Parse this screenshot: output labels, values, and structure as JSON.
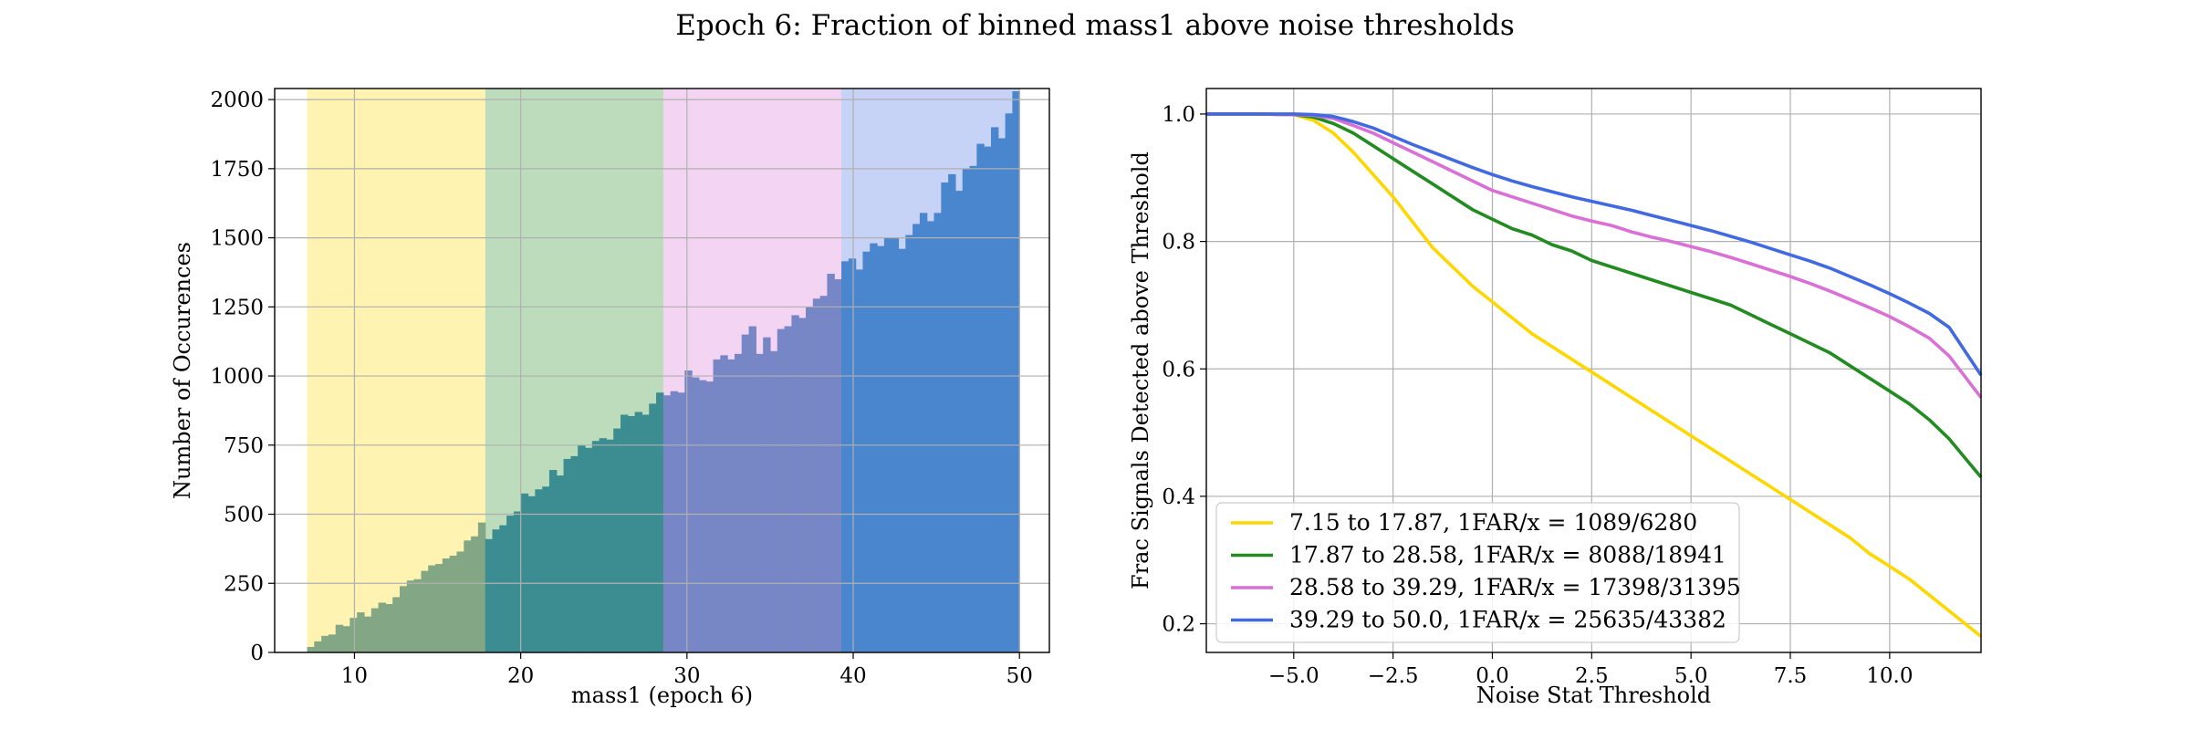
{
  "suptitle": "Epoch 6: Fraction of binned mass1 above noise thresholds",
  "chart_data": [
    {
      "type": "bar",
      "subtype": "histogram",
      "xlabel": "mass1 (epoch 6)",
      "ylabel": "Number of Occurences",
      "xlim": [
        5.2,
        51.8
      ],
      "ylim": [
        0,
        2040
      ],
      "xticks": [
        10,
        20,
        30,
        40,
        50
      ],
      "yticks": [
        0,
        250,
        500,
        750,
        1000,
        1250,
        1500,
        1750,
        2000
      ],
      "grid": true,
      "bin_start": 7.15,
      "bin_end": 50.0,
      "bin_count": 100,
      "counts": [
        20,
        40,
        60,
        65,
        100,
        95,
        125,
        145,
        130,
        160,
        180,
        175,
        200,
        240,
        260,
        265,
        295,
        315,
        320,
        340,
        350,
        365,
        405,
        420,
        470,
        410,
        445,
        460,
        495,
        510,
        575,
        565,
        590,
        600,
        660,
        640,
        700,
        710,
        750,
        740,
        765,
        775,
        770,
        810,
        860,
        855,
        870,
        860,
        900,
        940,
        930,
        945,
        940,
        1020,
        995,
        985,
        980,
        1060,
        1075,
        1060,
        1080,
        1150,
        1180,
        1080,
        1140,
        1090,
        1170,
        1180,
        1220,
        1210,
        1250,
        1280,
        1290,
        1370,
        1350,
        1415,
        1425,
        1385,
        1450,
        1480,
        1470,
        1500,
        1500,
        1460,
        1510,
        1550,
        1590,
        1560,
        1590,
        1700,
        1730,
        1670,
        1750,
        1760,
        1840,
        1830,
        1900,
        1860,
        1950,
        2030
      ],
      "regions": [
        {
          "from": 7.15,
          "to": 17.87,
          "color": "#ffd700"
        },
        {
          "from": 17.87,
          "to": 28.58,
          "color": "#228b22"
        },
        {
          "from": 28.58,
          "to": 39.29,
          "color": "#da70d6"
        },
        {
          "from": 39.29,
          "to": 50.0,
          "color": "#4169e1"
        }
      ],
      "bar_colors": [
        "#83a785",
        "#3b8d91",
        "#7787c6",
        "#4a86cd"
      ]
    },
    {
      "type": "line",
      "xlabel": "Noise Stat Threshold",
      "ylabel": "Frac Signals Detected above Threshold",
      "xlim": [
        -7.2,
        12.3
      ],
      "ylim": [
        0.155,
        1.04
      ],
      "xticks": [
        -5.0,
        -2.5,
        0.0,
        2.5,
        5.0,
        7.5,
        10.0
      ],
      "xtick_labels": [
        "−5.0",
        "−2.5",
        "0.0",
        "2.5",
        "5.0",
        "7.5",
        "10.0"
      ],
      "yticks": [
        0.2,
        0.4,
        0.6,
        0.8,
        1.0
      ],
      "grid": true,
      "legend_position": "lower-left",
      "x": [
        -7.2,
        -6,
        -5,
        -4.5,
        -4,
        -3.5,
        -3,
        -2.5,
        -2,
        -1.5,
        -1,
        -0.5,
        0,
        0.5,
        1,
        1.5,
        2,
        2.5,
        3,
        3.5,
        4,
        4.5,
        5,
        5.5,
        6,
        6.5,
        7,
        7.5,
        8,
        8.5,
        9,
        9.5,
        10,
        10.5,
        11,
        11.5,
        12.3
      ],
      "series": [
        {
          "name": "7.15 to 17.87, 1FAR/x = 1089/6280",
          "color": "#ffd700",
          "values": [
            1.0,
            1.0,
            0.999,
            0.99,
            0.97,
            0.94,
            0.905,
            0.87,
            0.83,
            0.79,
            0.76,
            0.73,
            0.705,
            0.68,
            0.655,
            0.635,
            0.615,
            0.595,
            0.575,
            0.555,
            0.535,
            0.515,
            0.495,
            0.475,
            0.455,
            0.435,
            0.415,
            0.395,
            0.375,
            0.355,
            0.335,
            0.31,
            0.29,
            0.27,
            0.245,
            0.22,
            0.18
          ]
        },
        {
          "name": "17.87 to 28.58, 1FAR/x = 8088/18941",
          "color": "#228b22",
          "values": [
            1.0,
            1.0,
            0.999,
            0.995,
            0.985,
            0.97,
            0.95,
            0.93,
            0.91,
            0.89,
            0.87,
            0.85,
            0.835,
            0.82,
            0.81,
            0.795,
            0.785,
            0.77,
            0.76,
            0.75,
            0.74,
            0.73,
            0.72,
            0.71,
            0.7,
            0.685,
            0.67,
            0.655,
            0.64,
            0.625,
            0.605,
            0.585,
            0.565,
            0.545,
            0.52,
            0.49,
            0.43
          ]
        },
        {
          "name": "28.58 to 39.29, 1FAR/x = 17398/31395",
          "color": "#da70d6",
          "values": [
            1.0,
            1.0,
            0.999,
            0.998,
            0.993,
            0.982,
            0.97,
            0.955,
            0.94,
            0.925,
            0.91,
            0.895,
            0.88,
            0.87,
            0.86,
            0.85,
            0.84,
            0.832,
            0.825,
            0.815,
            0.807,
            0.8,
            0.792,
            0.784,
            0.775,
            0.765,
            0.755,
            0.745,
            0.734,
            0.722,
            0.709,
            0.696,
            0.682,
            0.666,
            0.648,
            0.62,
            0.555
          ]
        },
        {
          "name": "39.29 to 50.0, 1FAR/x = 25635/43382",
          "color": "#4169e1",
          "values": [
            1.0,
            1.0,
            1.0,
            0.999,
            0.996,
            0.988,
            0.978,
            0.965,
            0.952,
            0.94,
            0.928,
            0.916,
            0.905,
            0.895,
            0.886,
            0.878,
            0.87,
            0.863,
            0.856,
            0.849,
            0.841,
            0.833,
            0.825,
            0.817,
            0.808,
            0.799,
            0.789,
            0.779,
            0.769,
            0.758,
            0.745,
            0.732,
            0.718,
            0.703,
            0.687,
            0.665,
            0.59
          ]
        }
      ]
    }
  ]
}
